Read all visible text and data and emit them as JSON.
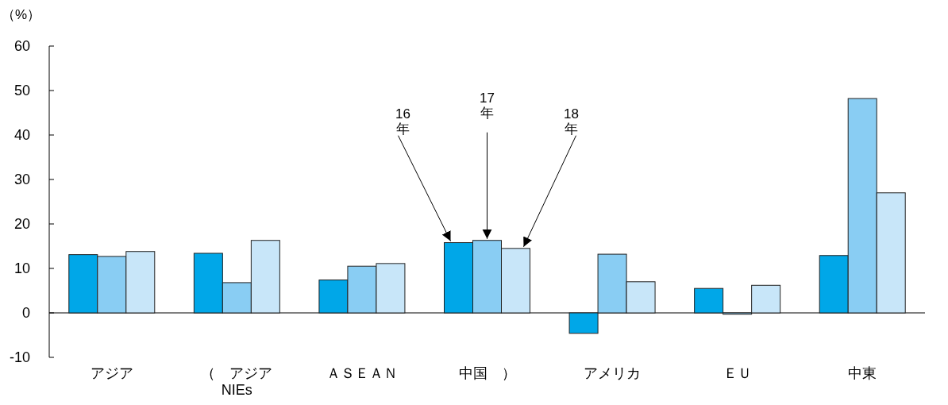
{
  "chart_data": {
    "type": "bar",
    "ylabel": "（%）",
    "categories": [
      "アジア",
      "（　アジア\nNIEs",
      "ＡＳＥＡＮ",
      "中国　）",
      "アメリカ",
      "ＥＵ",
      "中東"
    ],
    "series": [
      {
        "name": "16\n年",
        "color": "#00a7e8",
        "values": [
          13.1,
          13.4,
          7.4,
          15.8,
          -4.6,
          5.5,
          12.9
        ]
      },
      {
        "name": "17\n年",
        "color": "#89cdf3",
        "values": [
          12.7,
          6.8,
          10.5,
          16.3,
          13.2,
          -0.3,
          48.2
        ]
      },
      {
        "name": "18\n年",
        "color": "#c8e6f9",
        "values": [
          13.8,
          16.3,
          11.1,
          14.5,
          7.0,
          6.2,
          27.0
        ]
      }
    ],
    "ylim": [
      -10,
      60
    ],
    "yticks": [
      -10,
      0,
      10,
      20,
      30,
      40,
      50,
      60
    ]
  }
}
